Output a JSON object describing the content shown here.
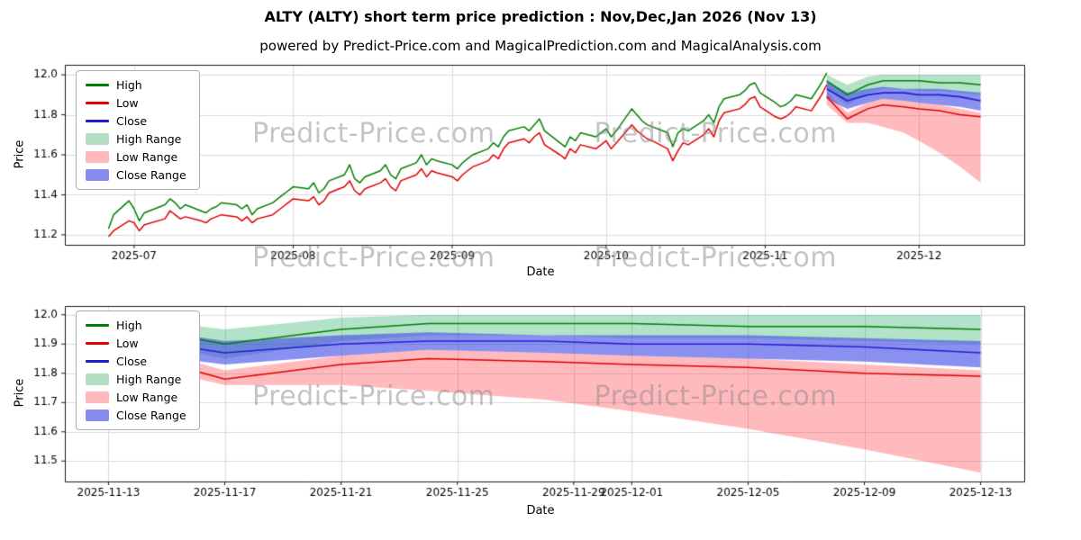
{
  "title": "ALTY (ALTY) short term price prediction : Nov,Dec,Jan 2026 (Nov 13)",
  "subtitle": "powered by Predict-Price.com and MagicalPrediction.com and MagicalAnalysis.com",
  "watermark": "Predict-Price.com",
  "colors": {
    "high_line": "#008000",
    "low_line": "#e00000",
    "close_line": "#2020cc",
    "high_range_fill": "rgba(0,160,70,0.30)",
    "low_range_fill": "rgba(255,45,55,0.33)",
    "close_range_fill": "rgba(60,70,230,0.60)",
    "grid": "#d9d9d9",
    "frame": "#1a1a1a",
    "watermark_gray": "#8c8c8c"
  },
  "legend": {
    "items": [
      {
        "label": "High",
        "swatch": "line",
        "color": "#008000"
      },
      {
        "label": "Low",
        "swatch": "line",
        "color": "#e00000"
      },
      {
        "label": "Close",
        "swatch": "line",
        "color": "#2020cc"
      },
      {
        "label": "High Range",
        "swatch": "patch",
        "color": "#b2dfc6"
      },
      {
        "label": "Low Range",
        "swatch": "patch",
        "color": "#ffb9bd"
      },
      {
        "label": "Close Range",
        "swatch": "patch",
        "color": "#878df0"
      }
    ]
  },
  "chart_data": [
    {
      "type": "line",
      "name": "price-history-with-forecast",
      "xlabel": "Date",
      "ylabel": "Price",
      "ylim": [
        11.15,
        12.05
      ],
      "yticks": [
        "11.2",
        "11.4",
        "11.6",
        "11.8",
        "12.0"
      ],
      "xticks": [
        {
          "date": "2025-07-01",
          "label": "2025-07"
        },
        {
          "date": "2025-08-01",
          "label": "2025-08"
        },
        {
          "date": "2025-09-01",
          "label": "2025-09"
        },
        {
          "date": "2025-10-01",
          "label": "2025-10"
        },
        {
          "date": "2025-11-01",
          "label": "2025-11"
        },
        {
          "date": "2025-12-01",
          "label": "2025-12"
        }
      ],
      "series": {
        "historical": {
          "dates": [
            "2025-06-26",
            "2025-06-27",
            "2025-06-30",
            "2025-07-01",
            "2025-07-02",
            "2025-07-03",
            "2025-07-07",
            "2025-07-08",
            "2025-07-09",
            "2025-07-10",
            "2025-07-11",
            "2025-07-14",
            "2025-07-15",
            "2025-07-16",
            "2025-07-17",
            "2025-07-18",
            "2025-07-21",
            "2025-07-22",
            "2025-07-23",
            "2025-07-24",
            "2025-07-25",
            "2025-07-28",
            "2025-07-29",
            "2025-07-30",
            "2025-07-31",
            "2025-08-01",
            "2025-08-04",
            "2025-08-05",
            "2025-08-06",
            "2025-08-07",
            "2025-08-08",
            "2025-08-11",
            "2025-08-12",
            "2025-08-13",
            "2025-08-14",
            "2025-08-15",
            "2025-08-18",
            "2025-08-19",
            "2025-08-20",
            "2025-08-21",
            "2025-08-22",
            "2025-08-25",
            "2025-08-26",
            "2025-08-27",
            "2025-08-28",
            "2025-08-29",
            "2025-09-01",
            "2025-09-02",
            "2025-09-03",
            "2025-09-04",
            "2025-09-05",
            "2025-09-08",
            "2025-09-09",
            "2025-09-10",
            "2025-09-11",
            "2025-09-12",
            "2025-09-15",
            "2025-09-16",
            "2025-09-17",
            "2025-09-18",
            "2025-09-19",
            "2025-09-22",
            "2025-09-23",
            "2025-09-24",
            "2025-09-25",
            "2025-09-26",
            "2025-09-29",
            "2025-09-30",
            "2025-10-01",
            "2025-10-02",
            "2025-10-03",
            "2025-10-06",
            "2025-10-07",
            "2025-10-08",
            "2025-10-09",
            "2025-10-10",
            "2025-10-13",
            "2025-10-14",
            "2025-10-15",
            "2025-10-16",
            "2025-10-17",
            "2025-10-20",
            "2025-10-21",
            "2025-10-22",
            "2025-10-23",
            "2025-10-24",
            "2025-10-27",
            "2025-10-28",
            "2025-10-29",
            "2025-10-30",
            "2025-10-31",
            "2025-11-03",
            "2025-11-04",
            "2025-11-05",
            "2025-11-06",
            "2025-11-07",
            "2025-11-10",
            "2025-11-11",
            "2025-11-12",
            "2025-11-13"
          ],
          "high": [
            11.23,
            11.3,
            11.37,
            11.33,
            11.27,
            11.31,
            11.35,
            11.38,
            11.36,
            11.33,
            11.35,
            11.32,
            11.31,
            11.33,
            11.34,
            11.36,
            11.35,
            11.33,
            11.35,
            11.3,
            11.33,
            11.36,
            11.38,
            11.4,
            11.42,
            11.44,
            11.43,
            11.46,
            11.41,
            11.43,
            11.47,
            11.5,
            11.55,
            11.48,
            11.46,
            11.49,
            11.52,
            11.55,
            11.5,
            11.48,
            11.53,
            11.56,
            11.6,
            11.55,
            11.58,
            11.57,
            11.55,
            11.53,
            11.56,
            11.58,
            11.6,
            11.63,
            11.66,
            11.64,
            11.69,
            11.72,
            11.74,
            11.72,
            11.75,
            11.78,
            11.72,
            11.66,
            11.64,
            11.69,
            11.67,
            11.71,
            11.69,
            11.71,
            11.73,
            11.69,
            11.72,
            11.83,
            11.8,
            11.77,
            11.75,
            11.74,
            11.71,
            11.64,
            11.71,
            11.73,
            11.72,
            11.77,
            11.8,
            11.76,
            11.84,
            11.88,
            11.9,
            11.92,
            11.95,
            11.96,
            11.91,
            11.86,
            11.84,
            11.85,
            11.87,
            11.9,
            11.88,
            11.92,
            11.96,
            12.01
          ],
          "low": [
            11.19,
            11.22,
            11.27,
            11.26,
            11.22,
            11.25,
            11.28,
            11.32,
            11.3,
            11.28,
            11.29,
            11.27,
            11.26,
            11.28,
            11.29,
            11.3,
            11.29,
            11.27,
            11.29,
            11.26,
            11.28,
            11.3,
            11.32,
            11.34,
            11.36,
            11.38,
            11.37,
            11.39,
            11.35,
            11.37,
            11.41,
            11.44,
            11.47,
            11.42,
            11.4,
            11.43,
            11.46,
            11.48,
            11.44,
            11.42,
            11.47,
            11.5,
            11.53,
            11.49,
            11.52,
            11.51,
            11.49,
            11.47,
            11.5,
            11.52,
            11.54,
            11.57,
            11.6,
            11.58,
            11.63,
            11.66,
            11.68,
            11.66,
            11.69,
            11.71,
            11.65,
            11.6,
            11.58,
            11.63,
            11.61,
            11.65,
            11.63,
            11.65,
            11.67,
            11.63,
            11.66,
            11.75,
            11.72,
            11.7,
            11.68,
            11.67,
            11.63,
            11.57,
            11.62,
            11.66,
            11.65,
            11.7,
            11.73,
            11.69,
            11.77,
            11.81,
            11.83,
            11.85,
            11.88,
            11.89,
            11.84,
            11.79,
            11.78,
            11.79,
            11.81,
            11.84,
            11.82,
            11.86,
            11.9,
            11.95
          ]
        },
        "prediction": {
          "dates": [
            "2025-11-13",
            "2025-11-17",
            "2025-11-21",
            "2025-11-24",
            "2025-11-28",
            "2025-12-01",
            "2025-12-05",
            "2025-12-09",
            "2025-12-13"
          ],
          "high": [
            11.97,
            11.9,
            11.95,
            11.97,
            11.97,
            11.97,
            11.96,
            11.96,
            11.95
          ],
          "high_range_upper": [
            12.0,
            11.95,
            11.99,
            12.0,
            12.0,
            12.0,
            12.0,
            12.0,
            12.0
          ],
          "high_range_lower": [
            11.93,
            11.85,
            11.91,
            11.93,
            11.93,
            11.92,
            11.92,
            11.91,
            11.9
          ],
          "low": [
            11.89,
            11.78,
            11.83,
            11.85,
            11.84,
            11.83,
            11.82,
            11.8,
            11.79
          ],
          "low_range_upper": [
            11.92,
            11.81,
            11.86,
            11.88,
            11.87,
            11.86,
            11.85,
            11.83,
            11.81
          ],
          "low_range_lower": [
            11.85,
            11.76,
            11.76,
            11.74,
            11.71,
            11.67,
            11.61,
            11.54,
            11.46
          ],
          "close": [
            11.93,
            11.87,
            11.9,
            11.91,
            11.91,
            11.9,
            11.9,
            11.89,
            11.87
          ],
          "close_range_upper": [
            11.97,
            11.91,
            11.93,
            11.94,
            11.93,
            11.93,
            11.93,
            11.92,
            11.91
          ],
          "close_range_lower": [
            11.88,
            11.83,
            11.86,
            11.88,
            11.87,
            11.86,
            11.85,
            11.84,
            11.82
          ]
        }
      }
    },
    {
      "type": "line",
      "name": "forecast-detail",
      "xlabel": "Date",
      "ylabel": "Price",
      "ylim": [
        11.43,
        12.03
      ],
      "yticks": [
        "11.5",
        "11.6",
        "11.7",
        "11.8",
        "11.9",
        "12.0"
      ],
      "xticks": [
        {
          "date": "2025-11-13",
          "label": "2025-11-13"
        },
        {
          "date": "2025-11-17",
          "label": "2025-11-17"
        },
        {
          "date": "2025-11-21",
          "label": "2025-11-21"
        },
        {
          "date": "2025-11-25",
          "label": "2025-11-25"
        },
        {
          "date": "2025-11-29",
          "label": "2025-11-29"
        },
        {
          "date": "2025-12-01",
          "label": "2025-12-01"
        },
        {
          "date": "2025-12-05",
          "label": "2025-12-05"
        },
        {
          "date": "2025-12-09",
          "label": "2025-12-09"
        },
        {
          "date": "2025-12-13",
          "label": "2025-12-13"
        }
      ],
      "series_ref": "chart_data.0.series.prediction"
    }
  ]
}
